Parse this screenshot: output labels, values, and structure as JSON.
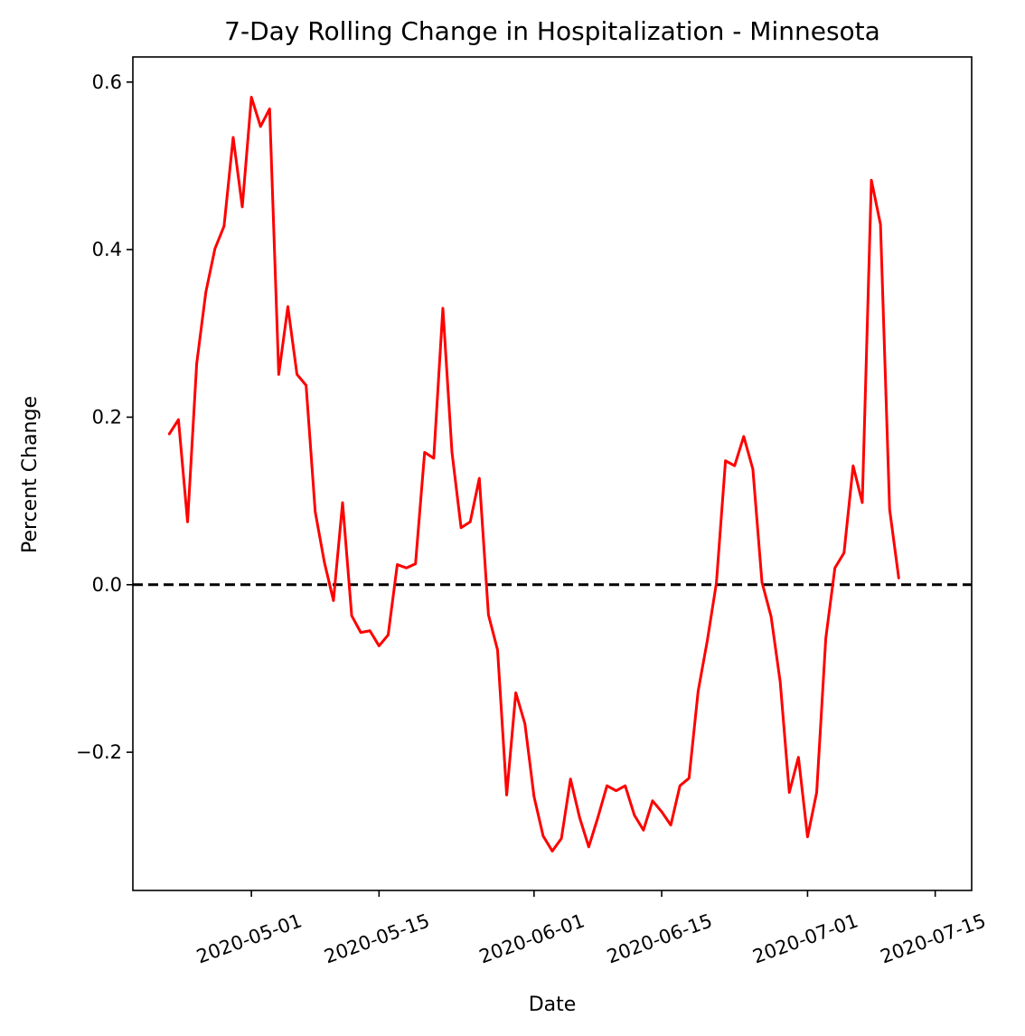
{
  "chart_data": {
    "type": "line",
    "title": "7-Day Rolling Change in Hospitalization - Minnesota",
    "xlabel": "Date",
    "ylabel": "Percent Change",
    "x_start": "2020-04-22",
    "x_end": "2020-07-15",
    "xlim": [
      "2020-04-18",
      "2020-07-19"
    ],
    "ylim": [
      -0.365,
      0.63
    ],
    "x_ticks": [
      "2020-05-01",
      "2020-05-15",
      "2020-06-01",
      "2020-06-15",
      "2020-07-01",
      "2020-07-15"
    ],
    "y_ticks": [
      0.6,
      0.4,
      0.2,
      0.0,
      -0.2
    ],
    "y_tick_labels": [
      "0.6",
      "0.4",
      "0.2",
      "0.0",
      "−0.2"
    ],
    "grid": false,
    "line_color": "#ff0000",
    "reference_line": {
      "y": 0.0,
      "style": "dashed",
      "color": "#000000"
    },
    "series": [
      {
        "values": [
          0.18,
          0.197,
          0.075,
          0.264,
          0.349,
          0.401,
          0.428,
          0.534,
          0.451,
          0.582,
          0.547,
          0.568,
          0.251,
          0.332,
          0.251,
          0.238,
          0.087,
          0.027,
          -0.019,
          0.098,
          -0.037,
          -0.057,
          -0.055,
          -0.073,
          -0.06,
          0.024,
          0.02,
          0.025,
          0.158,
          0.151,
          0.33,
          0.158,
          0.068,
          0.075,
          0.127,
          -0.036,
          -0.078,
          -0.251,
          -0.129,
          -0.166,
          -0.253,
          -0.3,
          -0.318,
          -0.303,
          -0.232,
          -0.278,
          -0.313,
          -0.278,
          -0.24,
          -0.246,
          -0.24,
          -0.275,
          -0.293,
          -0.258,
          -0.271,
          -0.287,
          -0.24,
          -0.231,
          -0.127,
          -0.067,
          0.002,
          0.148,
          0.142,
          0.177,
          0.138,
          0.003,
          -0.038,
          -0.116,
          -0.248,
          -0.206,
          -0.301,
          -0.248,
          -0.064,
          0.02,
          0.038,
          0.142,
          0.098,
          0.483,
          0.43,
          0.09,
          0.008
        ]
      }
    ]
  }
}
